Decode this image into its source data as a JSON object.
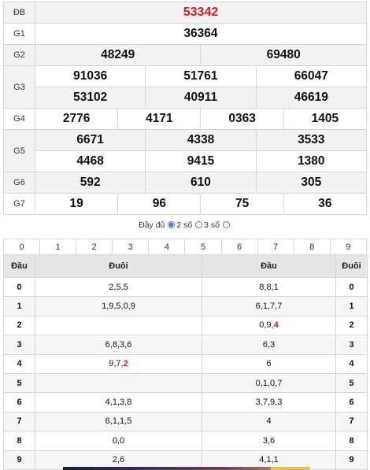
{
  "results": {
    "special": {
      "label": "ĐB",
      "numbers": [
        "53342"
      ]
    },
    "g1": {
      "label": "G1",
      "numbers": [
        "36364"
      ]
    },
    "g2": {
      "label": "G2",
      "numbers": [
        "48249",
        "69480"
      ]
    },
    "g3": {
      "label": "G3",
      "numbers": [
        "91036",
        "51761",
        "66047",
        "53102",
        "40911",
        "46619"
      ]
    },
    "g4": {
      "label": "G4",
      "numbers": [
        "2776",
        "4171",
        "0363",
        "1405"
      ]
    },
    "g5": {
      "label": "G5",
      "numbers": [
        "6671",
        "4338",
        "3533",
        "4468",
        "9415",
        "1380"
      ]
    },
    "g6": {
      "label": "G6",
      "numbers": [
        "592",
        "610",
        "305"
      ]
    },
    "g7": {
      "label": "G7",
      "numbers": [
        "19",
        "96",
        "75",
        "36"
      ]
    }
  },
  "options": {
    "full_label": "Đầy đủ",
    "two_digit_label": "2 số",
    "three_digit_label": "3 số",
    "selected": "full"
  },
  "digits": [
    "0",
    "1",
    "2",
    "3",
    "4",
    "5",
    "6",
    "7",
    "8",
    "9"
  ],
  "loto": {
    "headers": {
      "dau": "Đầu",
      "duoi": "Đuôi",
      "dau2": "Đầu",
      "duoi2": "Đuôi"
    },
    "rows": [
      {
        "key": "0",
        "duoi": "2,5,5",
        "dau_prefix": "8,8,1",
        "dau_highlight": "",
        "key2": "0"
      },
      {
        "key": "1",
        "duoi": "1,9,5,0,9",
        "dau_prefix": "6,1,7,7",
        "dau_highlight": "",
        "key2": "1"
      },
      {
        "key": "2",
        "duoi": "",
        "dau_prefix": "0,9,",
        "dau_highlight": "4",
        "key2": "2"
      },
      {
        "key": "3",
        "duoi": "6,8,3,6",
        "dau_prefix": "6,3",
        "dau_highlight": "",
        "key2": "3"
      },
      {
        "key": "4",
        "duoi_prefix": "9,7,",
        "duoi_highlight": "2",
        "dau_prefix": "6",
        "dau_highlight": "",
        "key2": "4"
      },
      {
        "key": "5",
        "duoi": "",
        "dau_prefix": "0,1,0,7",
        "dau_highlight": "",
        "key2": "5"
      },
      {
        "key": "6",
        "duoi": "4,1,3,8",
        "dau_prefix": "3,7,9,3",
        "dau_highlight": "",
        "key2": "6"
      },
      {
        "key": "7",
        "duoi": "6,1,1,5",
        "dau_prefix": "4",
        "dau_highlight": "",
        "key2": "7"
      },
      {
        "key": "8",
        "duoi": "0,0",
        "dau_prefix": "3,6",
        "dau_highlight": "",
        "key2": "8"
      },
      {
        "key": "9",
        "duoi": "2,6",
        "dau_prefix": "4,1,1",
        "dau_highlight": "",
        "key2": "9"
      }
    ]
  }
}
